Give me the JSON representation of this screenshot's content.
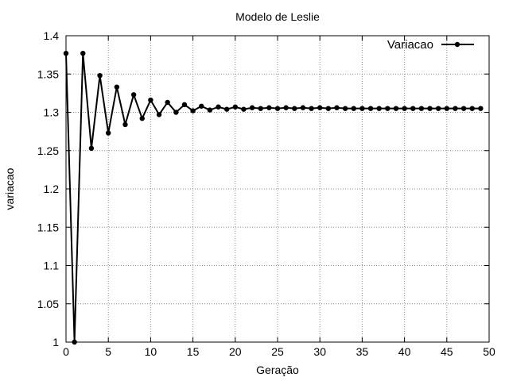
{
  "chart_data": {
    "type": "line",
    "title": "Modelo de Leslie",
    "xlabel": "Geração",
    "ylabel": "variacao",
    "xlim": [
      0,
      50
    ],
    "ylim": [
      1,
      1.4
    ],
    "xticks": [
      0,
      5,
      10,
      15,
      20,
      25,
      30,
      35,
      40,
      45,
      50
    ],
    "yticks": [
      1,
      1.05,
      1.1,
      1.15,
      1.2,
      1.25,
      1.3,
      1.35,
      1.4
    ],
    "ytick_labels": [
      "1",
      "1.05",
      "1.1",
      "1.15",
      "1.2",
      "1.25",
      "1.3",
      "1.35",
      "1.4"
    ],
    "grid": true,
    "legend_position": "top-right",
    "series": [
      {
        "name": "Variacao",
        "color": "#000000",
        "x": [
          0,
          1,
          2,
          3,
          4,
          5,
          6,
          7,
          8,
          9,
          10,
          11,
          12,
          13,
          14,
          15,
          16,
          17,
          18,
          19,
          20,
          21,
          22,
          23,
          24,
          25,
          26,
          27,
          28,
          29,
          30,
          31,
          32,
          33,
          34,
          35,
          36,
          37,
          38,
          39,
          40,
          41,
          42,
          43,
          44,
          45,
          46,
          47,
          48,
          49
        ],
        "y": [
          1.377,
          1.0,
          1.377,
          1.253,
          1.348,
          1.273,
          1.333,
          1.284,
          1.323,
          1.292,
          1.316,
          1.297,
          1.313,
          1.3,
          1.31,
          1.302,
          1.308,
          1.303,
          1.307,
          1.304,
          1.307,
          1.304,
          1.306,
          1.305,
          1.306,
          1.305,
          1.306,
          1.305,
          1.306,
          1.305,
          1.306,
          1.305,
          1.306,
          1.305,
          1.305,
          1.305,
          1.305,
          1.305,
          1.305,
          1.305,
          1.305,
          1.305,
          1.305,
          1.305,
          1.305,
          1.305,
          1.305,
          1.305,
          1.305,
          1.305
        ]
      }
    ]
  }
}
